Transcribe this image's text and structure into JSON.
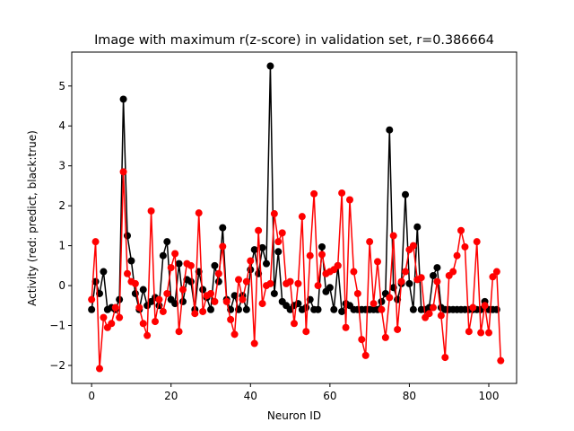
{
  "chart_data": {
    "type": "line",
    "title": "Image with maximum r(z-score) in validation set, r=0.386664",
    "xlabel": "Neuron ID",
    "ylabel": "Activity (red: predict, black:true)",
    "xlim": [
      -5,
      107
    ],
    "ylim": [
      -2.45,
      5.85
    ],
    "xticks": [
      0,
      20,
      40,
      60,
      80,
      100
    ],
    "yticks": [
      -2,
      -1,
      0,
      1,
      2,
      3,
      4,
      5
    ],
    "grid": false,
    "legend": "none",
    "series": [
      {
        "color": "#000000",
        "marker": "circle",
        "values": [
          -0.6,
          0.1,
          -0.2,
          0.35,
          -0.6,
          -0.55,
          -0.6,
          -0.35,
          4.67,
          1.25,
          0.62,
          -0.2,
          -0.6,
          -0.1,
          -0.5,
          -0.4,
          -0.3,
          -0.5,
          0.75,
          1.1,
          -0.35,
          -0.45,
          0.55,
          -0.4,
          0.15,
          0.1,
          -0.6,
          0.35,
          -0.1,
          -0.3,
          -0.6,
          0.5,
          0.1,
          1.45,
          -0.35,
          -0.6,
          -0.25,
          -0.6,
          -0.25,
          -0.6,
          0.4,
          0.9,
          0.3,
          0.95,
          0.55,
          5.5,
          -0.2,
          0.85,
          -0.4,
          -0.5,
          -0.6,
          -0.5,
          -0.45,
          -0.6,
          -0.55,
          -0.35,
          -0.6,
          -0.6,
          0.97,
          -0.15,
          -0.05,
          -0.6,
          0.5,
          -0.65,
          -0.45,
          -0.5,
          -0.6,
          -0.6,
          -0.6,
          -0.6,
          -0.6,
          -0.6,
          -0.6,
          -0.4,
          -0.2,
          3.9,
          -0.05,
          -0.35,
          0.05,
          2.28,
          0.05,
          -0.6,
          1.47,
          -0.6,
          -0.6,
          -0.55,
          0.25,
          0.45,
          -0.55,
          -0.6,
          -0.6,
          -0.6,
          -0.6,
          -0.6,
          -0.6,
          -0.6,
          -0.6,
          -0.6,
          -0.6,
          -0.4,
          -0.6,
          -0.6,
          -0.6
        ]
      },
      {
        "color": "#ff0000",
        "marker": "circle",
        "values": [
          -0.35,
          1.1,
          -2.08,
          -0.8,
          -1.05,
          -0.95,
          -0.55,
          -0.8,
          2.85,
          0.3,
          0.1,
          0.05,
          -0.55,
          -0.95,
          -1.25,
          1.87,
          -0.9,
          -0.35,
          -0.65,
          -0.2,
          0.45,
          0.8,
          -1.15,
          -0.1,
          0.55,
          0.5,
          -0.7,
          1.82,
          -0.65,
          -0.25,
          -0.2,
          -0.4,
          0.3,
          0.98,
          -0.4,
          -0.85,
          -1.22,
          0.15,
          -0.35,
          0.1,
          0.62,
          -1.45,
          1.38,
          -0.45,
          0.0,
          0.05,
          1.8,
          1.1,
          1.32,
          0.05,
          0.1,
          -0.95,
          0.05,
          1.73,
          -1.15,
          0.75,
          2.3,
          0.0,
          0.78,
          0.3,
          0.35,
          0.4,
          0.5,
          2.32,
          -1.05,
          2.15,
          0.35,
          -0.2,
          -1.35,
          -1.75,
          1.1,
          -0.45,
          0.6,
          -0.6,
          -1.3,
          -0.3,
          1.25,
          -1.1,
          0.1,
          0.35,
          0.9,
          1.0,
          0.15,
          0.2,
          -0.8,
          -0.7,
          -0.55,
          0.1,
          -0.75,
          -1.8,
          0.25,
          0.35,
          0.75,
          1.38,
          0.97,
          -1.15,
          -0.55,
          1.1,
          -1.18,
          -0.5,
          -1.18,
          0.22,
          0.35,
          -1.88
        ]
      }
    ]
  }
}
